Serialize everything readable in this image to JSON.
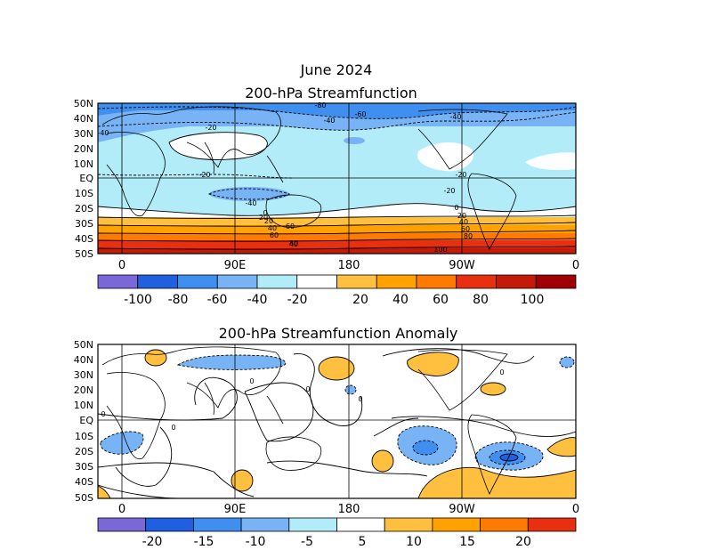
{
  "figure_title": "June 2024",
  "top_panel": {
    "title": "200-hPa Streamfunction",
    "lat_labels": [
      "50N",
      "40N",
      "30N",
      "20N",
      "10N",
      "EQ",
      "10S",
      "20S",
      "30S",
      "40S",
      "50S"
    ],
    "lon_labels": [
      "0",
      "90E",
      "180",
      "90W",
      "0"
    ],
    "contour_labels": [
      "-80",
      "-60",
      "-40",
      "-40",
      "-40",
      "-20",
      "-20",
      "-20",
      "-20",
      "-40",
      "0",
      "20",
      "40",
      "60",
      "20",
      "40",
      "60",
      "80",
      "100",
      "0",
      "20",
      "40",
      "60",
      "80"
    ],
    "colorbar": {
      "labels": [
        "-100",
        "-80",
        "-60",
        "-40",
        "-20",
        "20",
        "40",
        "60",
        "80",
        "100"
      ],
      "colors": [
        "#7b68d8",
        "#1f5fe0",
        "#3f8ff0",
        "#78b4f5",
        "#b2ecf8",
        "#ffffff",
        "#ffc040",
        "#ffa200",
        "#ff7a00",
        "#e83010",
        "#c41a08",
        "#a00000"
      ]
    }
  },
  "bottom_panel": {
    "title": "200-hPa Streamfunction Anomaly",
    "lat_labels": [
      "50N",
      "40N",
      "30N",
      "20N",
      "10N",
      "EQ",
      "10S",
      "20S",
      "30S",
      "40S",
      "50S"
    ],
    "lon_labels": [
      "0",
      "90E",
      "180",
      "90W",
      "0"
    ],
    "contour_labels": [
      "0",
      "0",
      "0",
      "0",
      "0",
      "0"
    ],
    "colorbar": {
      "labels": [
        "-20",
        "-15",
        "-10",
        "-5",
        "5",
        "10",
        "15",
        "20"
      ],
      "colors": [
        "#7b68d8",
        "#1f5fe0",
        "#3f8ff0",
        "#78b4f5",
        "#b2ecf8",
        "#ffffff",
        "#ffc040",
        "#ffa200",
        "#ff7a00",
        "#e83010"
      ]
    }
  }
}
